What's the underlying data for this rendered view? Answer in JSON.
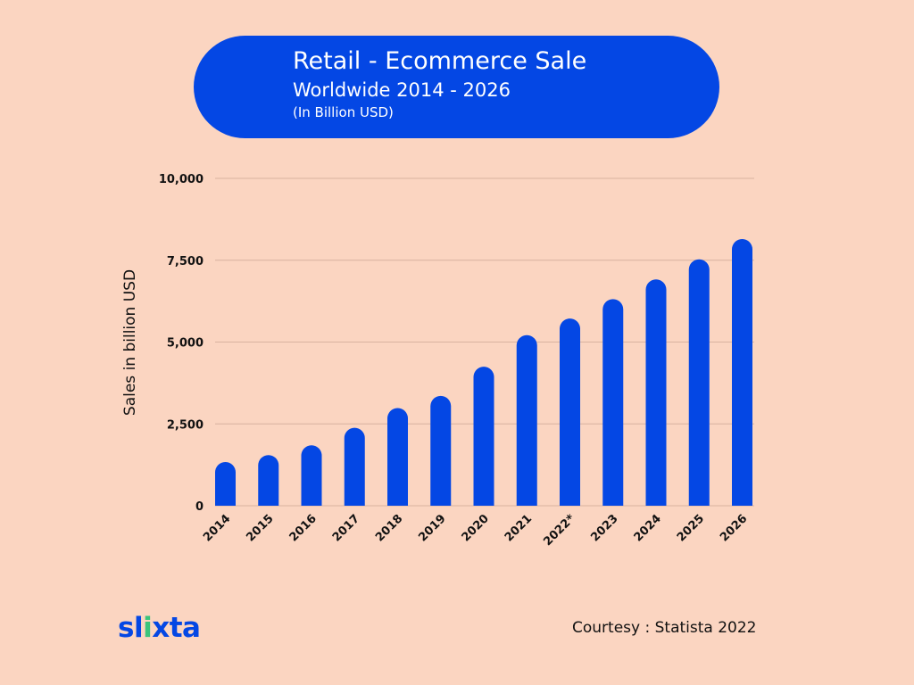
{
  "header": {
    "title": "Retail - Ecommerce Sale",
    "subtitle": "Worldwide 2014 - 2026",
    "unit_note": "(In Billion USD)"
  },
  "chart_data": {
    "type": "bar",
    "ylabel": "Sales in billion USD",
    "xlabel": "",
    "categories": [
      "2014",
      "2015",
      "2016",
      "2017",
      "2018",
      "2019",
      "2020",
      "2021",
      "2022*",
      "2023",
      "2024",
      "2025",
      "2026"
    ],
    "values": [
      1336,
      1548,
      1845,
      2382,
      2982,
      3354,
      4248,
      5211,
      5717,
      6310,
      6913,
      7528,
      8148
    ],
    "ylim": [
      0,
      10000
    ],
    "yticks": [
      0,
      2500,
      5000,
      7500,
      10000
    ],
    "ytick_labels": [
      "0",
      "2,500",
      "5,000",
      "7,500",
      "10,000"
    ],
    "grid": true,
    "legend": "none",
    "bar_color": "#0447e4",
    "grid_color": "#d8b2a0"
  },
  "brand": {
    "logo": "slixta",
    "primary_color": "#0447e4",
    "accent_color": "#3cc47c"
  },
  "footer": {
    "courtesy": "Courtesy : Statista 2022"
  },
  "colors": {
    "background": "#fbd5c1"
  }
}
